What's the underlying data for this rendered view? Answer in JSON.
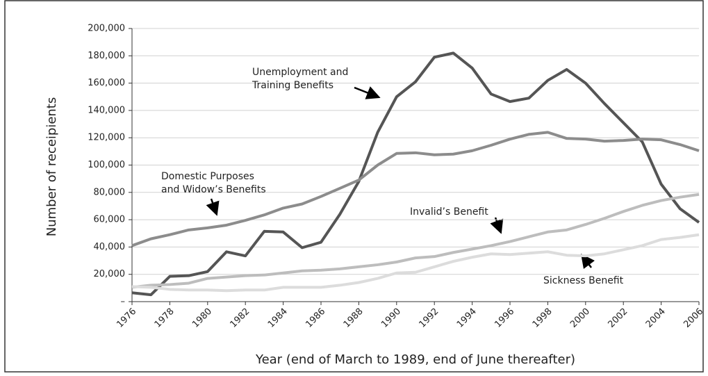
{
  "chart_data": {
    "type": "line",
    "x_label": "Year (end of March to 1989, end of June thereafter)",
    "y_label": "Number of receipients",
    "x": [
      1976,
      1977,
      1978,
      1979,
      1980,
      1981,
      1982,
      1983,
      1984,
      1985,
      1986,
      1987,
      1988,
      1989,
      1990,
      1991,
      1992,
      1993,
      1994,
      1995,
      1996,
      1997,
      1998,
      1999,
      2000,
      2001,
      2002,
      2003,
      2004,
      2005,
      2006
    ],
    "xlim": [
      1976,
      2006
    ],
    "xticks": [
      1976,
      1978,
      1980,
      1982,
      1984,
      1986,
      1988,
      1990,
      1992,
      1994,
      1996,
      1998,
      2000,
      2002,
      2004,
      2006
    ],
    "ylim": [
      0,
      200000
    ],
    "yticks": [
      {
        "value": 0,
        "label": "–"
      },
      {
        "value": 20000,
        "label": "20,000"
      },
      {
        "value": 40000,
        "label": "40,000"
      },
      {
        "value": 60000,
        "label": "60,000"
      },
      {
        "value": 80000,
        "label": "80,000"
      },
      {
        "value": 100000,
        "label": "100,000"
      },
      {
        "value": 120000,
        "label": "120,000"
      },
      {
        "value": 140000,
        "label": "140,000"
      },
      {
        "value": 160000,
        "label": "160,000"
      },
      {
        "value": 180000,
        "label": "180,000"
      },
      {
        "value": 200000,
        "label": "200,000"
      }
    ],
    "grid": true,
    "series": [
      {
        "name": "Unemployment and\nTraining Benefits",
        "color": "#555555",
        "values": [
          6500,
          5000,
          18500,
          19000,
          22000,
          36500,
          33500,
          51500,
          51000,
          39500,
          43500,
          64000,
          88000,
          124000,
          150000,
          161000,
          179000,
          182000,
          171000,
          152000,
          146500,
          149000,
          162000,
          170000,
          160000,
          145000,
          131000,
          117000,
          86000,
          68000,
          58000
        ]
      },
      {
        "name": "Domestic Purposes\nand Widow’s Benefits",
        "color": "#8c8c8c",
        "values": [
          41000,
          46000,
          49000,
          52500,
          54000,
          56000,
          59500,
          63500,
          68500,
          71500,
          77000,
          83000,
          89000,
          100000,
          108500,
          109000,
          107500,
          108000,
          110500,
          114500,
          119000,
          122500,
          124000,
          119500,
          119000,
          117500,
          118000,
          119000,
          118500,
          115000,
          110500
        ]
      },
      {
        "name": "Invalid’s Benefit",
        "color": "#bdbdbd",
        "values": [
          10500,
          12000,
          12500,
          13500,
          17000,
          18000,
          19000,
          19500,
          21000,
          22500,
          23000,
          24000,
          25500,
          27000,
          29000,
          32000,
          33000,
          36000,
          38500,
          41000,
          44000,
          47500,
          51000,
          52500,
          56500,
          61000,
          66000,
          70500,
          74000,
          76500,
          78500
        ]
      },
      {
        "name": "Sickness Benefit",
        "color": "#dcdcdc",
        "values": [
          11000,
          10500,
          9000,
          8500,
          8500,
          8000,
          8500,
          8500,
          10500,
          10500,
          10500,
          12000,
          14000,
          17000,
          21000,
          21500,
          25500,
          29500,
          32500,
          35000,
          34500,
          35500,
          36500,
          34000,
          33500,
          35000,
          38000,
          41000,
          45500,
          47000,
          49000
        ]
      }
    ]
  }
}
